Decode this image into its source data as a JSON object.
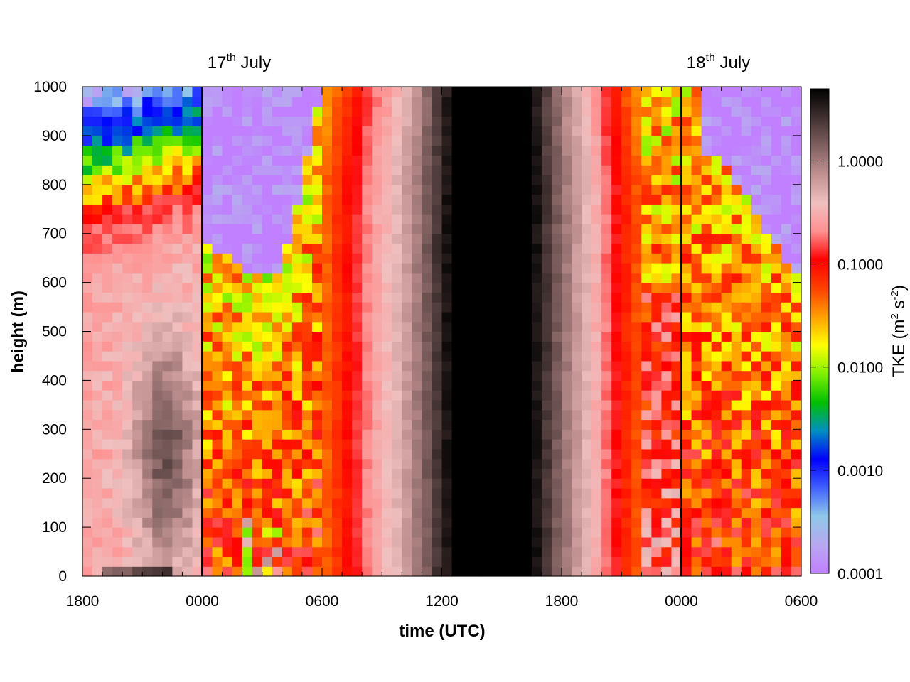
{
  "chart_data": {
    "type": "heatmap",
    "xlabel": "time (UTC)",
    "ylabel": "height (m)",
    "x_tick_labels": [
      "1800",
      "0000",
      "0600",
      "1200",
      "1800",
      "0000",
      "0600"
    ],
    "x_range_hours": [
      0,
      36
    ],
    "y_ticks": [
      0,
      100,
      200,
      300,
      400,
      500,
      600,
      700,
      800,
      900,
      1000
    ],
    "ylim": [
      0,
      1000
    ],
    "colorbar": {
      "label": "TKE",
      "units_base": "m",
      "units_exp1": "2",
      "units_mid": " s",
      "units_exp2": "-2",
      "tick_labels": [
        "0.0001",
        "0.0010",
        "0.0100",
        "0.1000",
        "1.0000"
      ],
      "tick_values": [
        0.0001,
        0.001,
        0.01,
        0.1,
        1.0
      ],
      "range": [
        0.0001,
        5.0
      ],
      "scale": "log",
      "colors": [
        "#c080ff",
        "#b8a8f0",
        "#8fc8e8",
        "#4060ff",
        "#0000ff",
        "#0090c0",
        "#00c000",
        "#80f000",
        "#ffff00",
        "#ffa000",
        "#ff4000",
        "#ff0000",
        "#ff9090",
        "#f0c0c0",
        "#c09090",
        "#806060",
        "#403030",
        "#000000"
      ]
    },
    "annotations": [
      {
        "date_num": "17",
        "date_sup": "th",
        "date_month": " July",
        "x_hours": 6
      },
      {
        "date_num": "18",
        "date_sup": "th",
        "date_month": " July",
        "x_hours": 30
      }
    ],
    "time_step_hours": 0.5,
    "height_step_m": 20,
    "values_note": "Values: TKE in m2 s-2 on a half-hourly by 20 m grid"
  }
}
